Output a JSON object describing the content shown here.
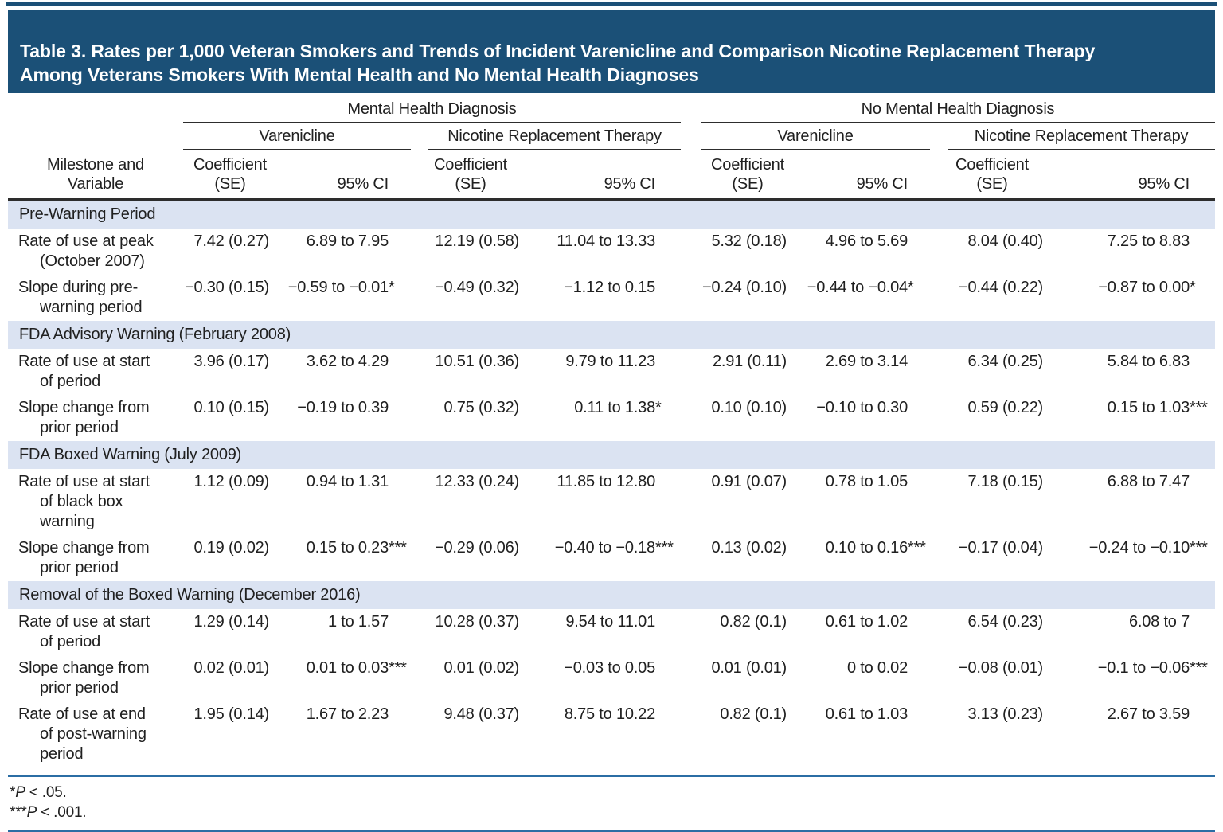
{
  "header": {
    "title": "Table 3. Rates per 1,000 Veteran Smokers and Trends of Incident Varenicline and Comparison Nicotine Replacement Therapy\nAmong Veterans Smokers With Mental Health and No Mental Health Diagnoses"
  },
  "colors": {
    "banner_blue": "#1b5077",
    "section_band_blue": "#dbe3f2",
    "footer_rule_blue": "#2b6da4",
    "header_rule_dark": "#2d2d2d",
    "text": "#202020"
  },
  "table": {
    "col1_header": "Milestone and\nVariable",
    "groups": [
      {
        "label": "Mental Health Diagnosis",
        "subgroups": [
          "Varenicline",
          "Nicotine Replacement Therapy"
        ]
      },
      {
        "label": "No Mental Health Diagnosis",
        "subgroups": [
          "Varenicline",
          "Nicotine Replacement Therapy"
        ]
      }
    ],
    "col_headers": {
      "coef": "Coefficient\n(SE)",
      "ci": "95% CI"
    },
    "sections": [
      {
        "title": "Pre-Warning Period",
        "rows": [
          {
            "label": "Rate of use at peak\n(October 2007)",
            "values": [
              "7.42 (0.27)",
              "6.89 to 7.95",
              "12.19 (0.58)",
              "11.04 to 13.33",
              "5.32 (0.18)",
              "4.96 to 5.69",
              "8.04 (0.40)",
              "7.25 to 8.83"
            ]
          },
          {
            "label": "Slope during pre-\nwarning period",
            "values": [
              "−0.30 (0.15)",
              "−0.59 to −0.01*",
              "−0.49 (0.32)",
              "−1.12 to 0.15",
              "−0.24 (0.10)",
              "−0.44 to −0.04*",
              "−0.44 (0.22)",
              "−0.87 to 0.00*"
            ]
          }
        ]
      },
      {
        "title": "FDA Advisory Warning (February 2008)",
        "rows": [
          {
            "label": "Rate of use at start\nof period",
            "values": [
              "3.96 (0.17)",
              "3.62 to 4.29",
              "10.51 (0.36)",
              "9.79 to 11.23",
              "2.91 (0.11)",
              "2.69 to 3.14",
              "6.34 (0.25)",
              "5.84 to 6.83"
            ]
          },
          {
            "label": "Slope change from\nprior period",
            "values": [
              "0.10 (0.15)",
              "−0.19 to 0.39",
              "0.75 (0.32)",
              "0.11 to 1.38*",
              "0.10 (0.10)",
              "−0.10 to 0.30",
              "0.59 (0.22)",
              "0.15 to 1.03***"
            ]
          }
        ]
      },
      {
        "title": "FDA Boxed Warning (July 2009)",
        "rows": [
          {
            "label": "Rate of use at start\nof black box\nwarning",
            "values": [
              "1.12 (0.09)",
              "0.94 to 1.31",
              "12.33 (0.24)",
              "11.85 to 12.80",
              "0.91 (0.07)",
              "0.78 to 1.05",
              "7.18 (0.15)",
              "6.88 to 7.47"
            ]
          },
          {
            "label": "Slope change from\nprior period",
            "values": [
              "0.19 (0.02)",
              "0.15 to 0.23***",
              "−0.29 (0.06)",
              "−0.40 to −0.18***",
              "0.13 (0.02)",
              "0.10 to 0.16***",
              "−0.17 (0.04)",
              "−0.24 to −0.10***"
            ]
          }
        ]
      },
      {
        "title": "Removal of the Boxed Warning (December 2016)",
        "rows": [
          {
            "label": "Rate of use at start\nof period",
            "values": [
              "1.29 (0.14)",
              "1 to 1.57",
              "10.28 (0.37)",
              "9.54 to 11.01",
              "0.82 (0.1)",
              "0.61 to 1.02",
              "6.54 (0.23)",
              "6.08 to 7"
            ]
          },
          {
            "label": "Slope change from\nprior period",
            "values": [
              "0.02 (0.01)",
              "0.01 to 0.03***",
              "0.01 (0.02)",
              "−0.03 to 0.05",
              "0.01 (0.01)",
              "0 to 0.02",
              "−0.08 (0.01)",
              "−0.1 to −0.06***"
            ]
          },
          {
            "label": "Rate of use at end\nof post-warning\nperiod",
            "values": [
              "1.95 (0.14)",
              "1.67 to 2.23",
              "9.48 (0.37)",
              "8.75 to 10.22",
              "0.82 (0.1)",
              "0.61 to 1.03",
              "3.13 (0.23)",
              "2.67 to 3.59"
            ]
          }
        ]
      }
    ]
  },
  "footnotes": [
    {
      "marker": "*",
      "symbol": "P",
      "text": " < .05."
    },
    {
      "marker": "***",
      "symbol": "P",
      "text": " < .001."
    }
  ]
}
